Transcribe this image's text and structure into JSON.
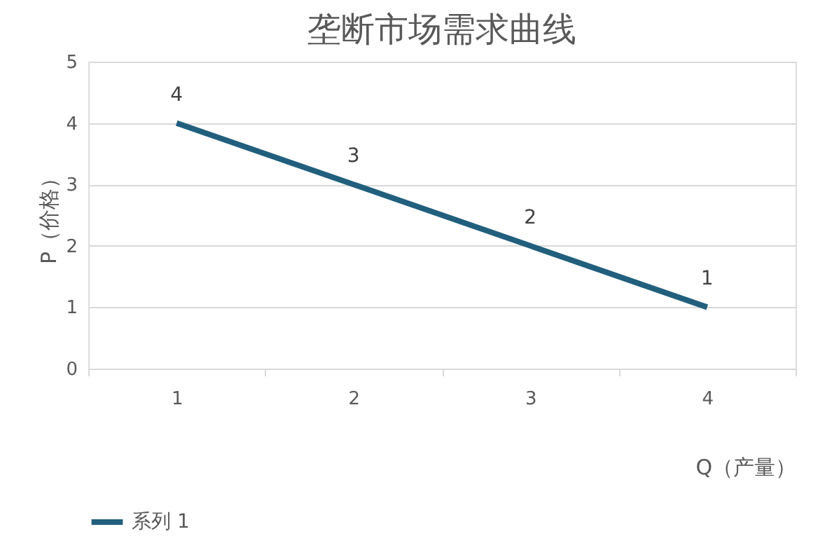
{
  "chart_data": {
    "type": "line",
    "title": "垄断市场需求曲线",
    "xlabel": "Q（产量）",
    "ylabel": "P（价格）",
    "categories": [
      "1",
      "2",
      "3",
      "4"
    ],
    "series": [
      {
        "name": "系列 1",
        "color": "#215f7d",
        "values": [
          4,
          3,
          2,
          1
        ]
      }
    ],
    "ylim": [
      0,
      5
    ],
    "yticks": [
      0,
      1,
      2,
      3,
      4,
      5
    ],
    "grid": "y",
    "legend": "bottom",
    "data_labels": true,
    "marker": "none",
    "line_style": "solid"
  }
}
